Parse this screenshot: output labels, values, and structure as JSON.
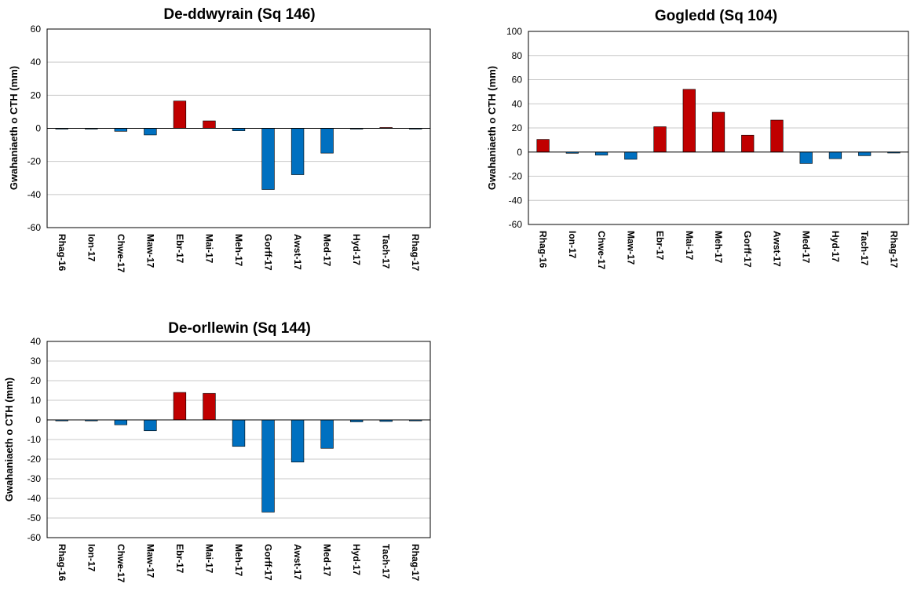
{
  "chart_data": [
    {
      "type": "bar",
      "title": "De-ddwyrain (Sq 146)",
      "ylabel": "Gwahaniaeth o CTH (mm)",
      "xlabel": "",
      "categories": [
        "Rhag-16",
        "Ion-17",
        "Chwe-17",
        "Maw-17",
        "Ebr-17",
        "Mai-17",
        "Meh-17",
        "Gorff-17",
        "Awst-17",
        "Med-17",
        "Hyd-17",
        "Tach-17",
        "Rhag-17"
      ],
      "values": [
        -0.3,
        -0.3,
        -1.8,
        -4,
        16.5,
        4.5,
        -1.5,
        -37,
        -28,
        -15,
        -0.3,
        0.5,
        -0.3
      ],
      "ylim": [
        -60,
        60
      ],
      "yticks": [
        -60,
        -40,
        -20,
        0,
        20,
        40,
        60
      ],
      "grid": true,
      "colors": {
        "positive": "#c00000",
        "negative": "#0070c0"
      }
    },
    {
      "type": "bar",
      "title": "Gogledd (Sq 104)",
      "ylabel": "Gwahaniaeth o CTH (mm)",
      "xlabel": "",
      "categories": [
        "Rhag-16",
        "Ion-17",
        "Chwe-17",
        "Maw-17",
        "Ebr-17",
        "Mai-17",
        "Meh-17",
        "Gorff-17",
        "Awst-17",
        "Med-17",
        "Hyd-17",
        "Tach-17",
        "Rhag-17"
      ],
      "values": [
        10.5,
        -1,
        -2.5,
        -6,
        21,
        52,
        33,
        14,
        26.5,
        -9.5,
        -5.5,
        -3,
        -0.8
      ],
      "ylim": [
        -60,
        100
      ],
      "yticks": [
        -60,
        -40,
        -20,
        0,
        20,
        40,
        60,
        80,
        100
      ],
      "grid": true,
      "colors": {
        "positive": "#c00000",
        "negative": "#0070c0"
      }
    },
    {
      "type": "bar",
      "title": "De-orllewin (Sq 144)",
      "ylabel": "Gwahaniaeth o CTH (mm)",
      "xlabel": "",
      "categories": [
        "Rhag-16",
        "Ion-17",
        "Chwe-17",
        "Maw-17",
        "Ebr-17",
        "Mai-17",
        "Meh-17",
        "Gorff-17",
        "Awst-17",
        "Med-17",
        "Hyd-17",
        "Tach-17",
        "Rhag-17"
      ],
      "values": [
        -0.5,
        -0.5,
        -2.5,
        -5.5,
        14,
        13.5,
        -13.5,
        -47,
        -21.5,
        -14.5,
        -1,
        -0.8,
        -0.5
      ],
      "ylim": [
        -60,
        40
      ],
      "yticks": [
        -60,
        -50,
        -40,
        -30,
        -20,
        -10,
        0,
        10,
        20,
        30,
        40
      ],
      "grid": true,
      "colors": {
        "positive": "#c00000",
        "negative": "#0070c0"
      }
    }
  ]
}
